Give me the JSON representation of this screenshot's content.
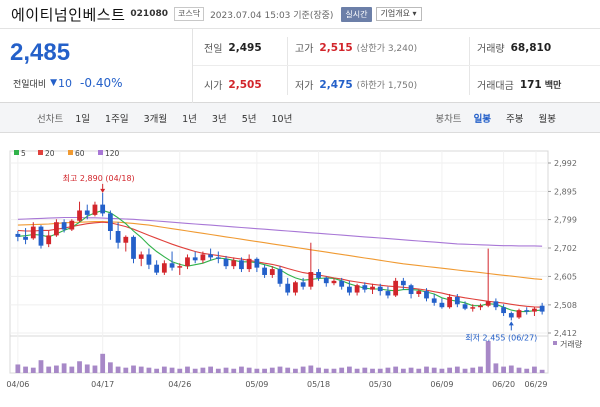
{
  "header": {
    "name": "에이티넘인베스트",
    "code": "021080",
    "market": "코스닥",
    "datetime": "2023.07.04 15:03 기준(장중)",
    "realtime_label": "실시간",
    "overview_label": "기업개요"
  },
  "quote": {
    "price": "2,485",
    "change_label": "전일대비",
    "change": "10",
    "change_pct": "-0.40%",
    "prev_label": "전일",
    "prev": "2,495",
    "high_label": "고가",
    "high": "2,515",
    "high_sub": "(상한가 3,240)",
    "volume_label": "거래량",
    "volume": "68,810",
    "open_label": "시가",
    "open": "2,505",
    "low_label": "저가",
    "low": "2,475",
    "low_sub": "(하한가 1,750)",
    "amount_label": "거래대금",
    "amount": "171",
    "amount_unit": "백만"
  },
  "toolbar": {
    "line_chart_label": "선차트",
    "periods": [
      "1일",
      "1주일",
      "3개월",
      "1년",
      "3년",
      "5년",
      "10년"
    ],
    "candle_chart_label": "봉차트",
    "candle_periods": [
      "일봉",
      "주봉",
      "월봉"
    ],
    "active_candle": "일봉"
  },
  "colors": {
    "up": "#d2252b",
    "down": "#2460c9",
    "ma5": "#31b24a",
    "ma20": "#e0413c",
    "ma60": "#f09a32",
    "ma120": "#a877d6",
    "volume_bar": "#a788c7"
  },
  "chart_data": {
    "type": "candlestick",
    "legend": [
      {
        "label": "5",
        "color": "#31b24a"
      },
      {
        "label": "20",
        "color": "#e0413c"
      },
      {
        "label": "60",
        "color": "#f09a32"
      },
      {
        "label": "120",
        "color": "#a877d6"
      }
    ],
    "y_ticks": [
      "2,992",
      "2,895",
      "2,799",
      "2,702",
      "2,605",
      "2,508",
      "2,412"
    ],
    "ylim": [
      2412,
      2992
    ],
    "x_ticks": [
      "04/06",
      "04/17",
      "04/26",
      "05/09",
      "05/18",
      "05/30",
      "06/09",
      "06/20",
      "06/29"
    ],
    "high_annotation": "최고 2,890 (04/18)",
    "low_annotation": "최저 2,455 (06/27)",
    "volume_label": "거래량",
    "candles": [
      [
        2750,
        2760,
        2725,
        2740
      ],
      [
        2740,
        2770,
        2715,
        2730
      ],
      [
        2735,
        2790,
        2730,
        2775
      ],
      [
        2775,
        2780,
        2700,
        2710
      ],
      [
        2715,
        2760,
        2705,
        2745
      ],
      [
        2745,
        2800,
        2740,
        2790
      ],
      [
        2790,
        2800,
        2755,
        2765
      ],
      [
        2765,
        2800,
        2760,
        2795
      ],
      [
        2795,
        2860,
        2790,
        2830
      ],
      [
        2830,
        2850,
        2800,
        2815
      ],
      [
        2815,
        2860,
        2810,
        2850
      ],
      [
        2850,
        2890,
        2810,
        2820
      ],
      [
        2820,
        2830,
        2730,
        2760
      ],
      [
        2760,
        2790,
        2700,
        2720
      ],
      [
        2720,
        2745,
        2690,
        2740
      ],
      [
        2740,
        2745,
        2650,
        2665
      ],
      [
        2665,
        2690,
        2640,
        2680
      ],
      [
        2680,
        2700,
        2630,
        2645
      ],
      [
        2645,
        2660,
        2610,
        2618
      ],
      [
        2618,
        2660,
        2610,
        2650
      ],
      [
        2650,
        2690,
        2625,
        2635
      ],
      [
        2635,
        2650,
        2610,
        2640
      ],
      [
        2640,
        2680,
        2630,
        2670
      ],
      [
        2670,
        2690,
        2650,
        2660
      ],
      [
        2660,
        2690,
        2650,
        2680
      ],
      [
        2680,
        2700,
        2660,
        2670
      ],
      [
        2670,
        2690,
        2650,
        2665
      ],
      [
        2665,
        2675,
        2630,
        2640
      ],
      [
        2640,
        2670,
        2630,
        2660
      ],
      [
        2660,
        2670,
        2620,
        2630
      ],
      [
        2630,
        2680,
        2620,
        2665
      ],
      [
        2665,
        2670,
        2620,
        2635
      ],
      [
        2635,
        2645,
        2600,
        2610
      ],
      [
        2610,
        2640,
        2600,
        2630
      ],
      [
        2630,
        2640,
        2570,
        2580
      ],
      [
        2580,
        2600,
        2540,
        2550
      ],
      [
        2550,
        2590,
        2540,
        2585
      ],
      [
        2585,
        2600,
        2560,
        2570
      ],
      [
        2570,
        2720,
        2560,
        2620
      ],
      [
        2620,
        2630,
        2590,
        2600
      ],
      [
        2600,
        2605,
        2570,
        2582
      ],
      [
        2582,
        2600,
        2575,
        2590
      ],
      [
        2590,
        2600,
        2560,
        2570
      ],
      [
        2570,
        2590,
        2540,
        2550
      ],
      [
        2550,
        2580,
        2540,
        2575
      ],
      [
        2575,
        2585,
        2550,
        2560
      ],
      [
        2560,
        2580,
        2545,
        2570
      ],
      [
        2570,
        2580,
        2540,
        2555
      ],
      [
        2555,
        2570,
        2530,
        2540
      ],
      [
        2540,
        2600,
        2535,
        2590
      ],
      [
        2590,
        2600,
        2560,
        2575
      ],
      [
        2575,
        2580,
        2530,
        2545
      ],
      [
        2545,
        2560,
        2535,
        2555
      ],
      [
        2555,
        2565,
        2520,
        2530
      ],
      [
        2530,
        2545,
        2505,
        2515
      ],
      [
        2515,
        2530,
        2495,
        2500
      ],
      [
        2500,
        2545,
        2495,
        2535
      ],
      [
        2535,
        2545,
        2500,
        2510
      ],
      [
        2510,
        2520,
        2490,
        2495
      ],
      [
        2495,
        2510,
        2485,
        2500
      ],
      [
        2500,
        2512,
        2490,
        2505
      ],
      [
        2505,
        2700,
        2500,
        2520
      ],
      [
        2520,
        2530,
        2490,
        2500
      ],
      [
        2500,
        2510,
        2470,
        2480
      ],
      [
        2480,
        2485,
        2455,
        2465
      ],
      [
        2465,
        2495,
        2460,
        2490
      ],
      [
        2490,
        2500,
        2475,
        2485
      ],
      [
        2485,
        2500,
        2470,
        2495
      ],
      [
        2505,
        2515,
        2475,
        2485
      ]
    ],
    "ma5": [
      2742,
      2744,
      2748,
      2746,
      2740,
      2750,
      2762,
      2772,
      2790,
      2810,
      2822,
      2830,
      2822,
      2805,
      2785,
      2760,
      2738,
      2712,
      2690,
      2672,
      2655,
      2646,
      2640,
      2645,
      2650,
      2660,
      2668,
      2665,
      2660,
      2655,
      2655,
      2652,
      2645,
      2638,
      2628,
      2612,
      2600,
      2592,
      2595,
      2598,
      2600,
      2598,
      2590,
      2580,
      2572,
      2565,
      2562,
      2562,
      2558,
      2556,
      2560,
      2560,
      2558,
      2552,
      2545,
      2532,
      2525,
      2520,
      2515,
      2505,
      2505,
      2512,
      2510,
      2500,
      2490,
      2485,
      2485,
      2488,
      2490
    ],
    "ma20": [
      2762,
      2760,
      2760,
      2762,
      2762,
      2766,
      2770,
      2775,
      2780,
      2785,
      2788,
      2790,
      2788,
      2782,
      2775,
      2766,
      2756,
      2745,
      2735,
      2725,
      2715,
      2706,
      2698,
      2690,
      2684,
      2680,
      2676,
      2672,
      2668,
      2664,
      2660,
      2655,
      2650,
      2646,
      2640,
      2632,
      2625,
      2618,
      2614,
      2610,
      2605,
      2600,
      2596,
      2590,
      2586,
      2582,
      2578,
      2575,
      2572,
      2570,
      2568,
      2565,
      2562,
      2558,
      2553,
      2548,
      2542,
      2537,
      2532,
      2528,
      2524,
      2520,
      2517,
      2514,
      2510,
      2506,
      2503,
      2501,
      2500
    ],
    "ma60": [
      2780,
      2781,
      2782,
      2783,
      2784,
      2786,
      2788,
      2789,
      2790,
      2791,
      2792,
      2792,
      2791,
      2790,
      2788,
      2786,
      2783,
      2780,
      2776,
      2772,
      2768,
      2764,
      2760,
      2756,
      2752,
      2748,
      2744,
      2740,
      2736,
      2732,
      2728,
      2724,
      2720,
      2716,
      2712,
      2708,
      2704,
      2700,
      2696,
      2692,
      2688,
      2684,
      2680,
      2676,
      2672,
      2668,
      2664,
      2660,
      2656,
      2652,
      2648,
      2645,
      2642,
      2639,
      2636,
      2633,
      2630,
      2627,
      2624,
      2621,
      2618,
      2615,
      2612,
      2609,
      2606,
      2603,
      2600,
      2597,
      2595
    ],
    "ma120": [
      2800,
      2801,
      2802,
      2803,
      2804,
      2805,
      2806,
      2806,
      2806,
      2805,
      2805,
      2804,
      2803,
      2802,
      2801,
      2800,
      2798,
      2796,
      2794,
      2792,
      2790,
      2788,
      2786,
      2784,
      2782,
      2780,
      2778,
      2776,
      2774,
      2772,
      2770,
      2768,
      2766,
      2764,
      2762,
      2760,
      2758,
      2756,
      2754,
      2752,
      2750,
      2748,
      2746,
      2744,
      2742,
      2740,
      2738,
      2736,
      2734,
      2732,
      2730,
      2728,
      2726,
      2724,
      2722,
      2720,
      2718,
      2716,
      2715,
      2714,
      2713,
      2712,
      2711,
      2710,
      2710,
      2709,
      2709,
      2709,
      2708
    ],
    "volumes": [
      40,
      30,
      25,
      60,
      30,
      35,
      45,
      30,
      55,
      40,
      35,
      90,
      50,
      30,
      25,
      35,
      30,
      25,
      20,
      30,
      25,
      20,
      30,
      20,
      25,
      30,
      20,
      25,
      20,
      30,
      25,
      20,
      20,
      25,
      30,
      25,
      20,
      30,
      35,
      25,
      20,
      20,
      25,
      30,
      20,
      25,
      20,
      20,
      25,
      30,
      20,
      25,
      20,
      30,
      25,
      20,
      25,
      30,
      20,
      25,
      30,
      150,
      45,
      30,
      35,
      25,
      20,
      30,
      15
    ]
  }
}
